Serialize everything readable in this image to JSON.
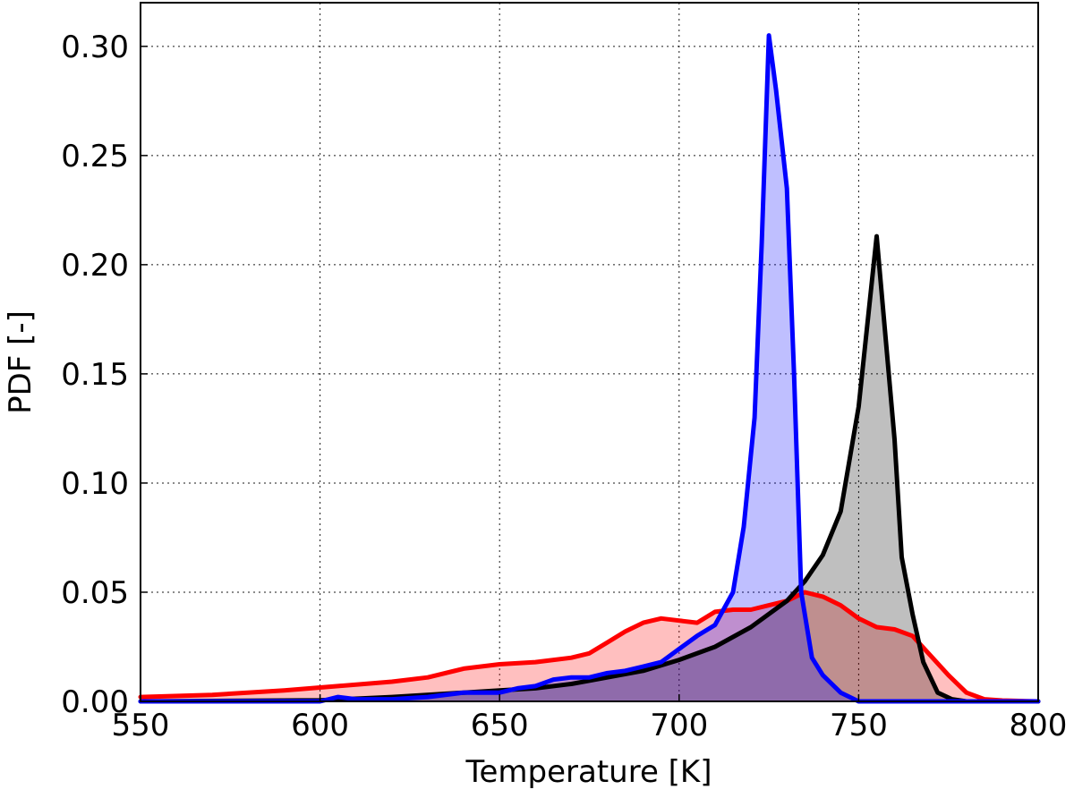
{
  "chart_data": {
    "type": "area",
    "xlabel": "Temperature [K]",
    "ylabel": "PDF [-]",
    "xlim": [
      550,
      800
    ],
    "ylim": [
      0,
      0.32
    ],
    "xticks": [
      550,
      600,
      650,
      700,
      750,
      800
    ],
    "yticks": [
      0,
      0.05,
      0.1,
      0.15,
      0.2,
      0.25,
      0.3
    ],
    "xtick_labels": [
      "550",
      "600",
      "650",
      "700",
      "750",
      "800"
    ],
    "ytick_labels": [
      "0.00",
      "0.05",
      "0.10",
      "0.15",
      "0.20",
      "0.25",
      "0.30"
    ],
    "grid": true,
    "series": [
      {
        "color": "#ff0000",
        "fill": "#ff0000",
        "fill_opacity": 0.25,
        "points": [
          [
            550,
            0.002
          ],
          [
            570,
            0.003
          ],
          [
            590,
            0.005
          ],
          [
            605,
            0.007
          ],
          [
            620,
            0.009
          ],
          [
            630,
            0.011
          ],
          [
            640,
            0.015
          ],
          [
            650,
            0.017
          ],
          [
            660,
            0.018
          ],
          [
            670,
            0.02
          ],
          [
            675,
            0.022
          ],
          [
            680,
            0.027
          ],
          [
            685,
            0.032
          ],
          [
            690,
            0.036
          ],
          [
            695,
            0.038
          ],
          [
            700,
            0.037
          ],
          [
            705,
            0.036
          ],
          [
            710,
            0.041
          ],
          [
            715,
            0.042
          ],
          [
            720,
            0.042
          ],
          [
            725,
            0.044
          ],
          [
            730,
            0.046
          ],
          [
            735,
            0.05
          ],
          [
            740,
            0.048
          ],
          [
            745,
            0.044
          ],
          [
            750,
            0.038
          ],
          [
            755,
            0.034
          ],
          [
            760,
            0.033
          ],
          [
            765,
            0.03
          ],
          [
            770,
            0.021
          ],
          [
            775,
            0.012
          ],
          [
            780,
            0.004
          ],
          [
            785,
            0.001
          ],
          [
            790,
            0.0004
          ],
          [
            800,
            0.0
          ]
        ]
      },
      {
        "color": "#000000",
        "fill": "#000000",
        "fill_opacity": 0.25,
        "points": [
          [
            550,
            0.0
          ],
          [
            600,
            0.0005
          ],
          [
            620,
            0.002
          ],
          [
            640,
            0.004
          ],
          [
            650,
            0.005
          ],
          [
            660,
            0.006
          ],
          [
            670,
            0.008
          ],
          [
            680,
            0.011
          ],
          [
            690,
            0.014
          ],
          [
            700,
            0.019
          ],
          [
            710,
            0.025
          ],
          [
            720,
            0.034
          ],
          [
            730,
            0.046
          ],
          [
            735,
            0.055
          ],
          [
            740,
            0.067
          ],
          [
            745,
            0.087
          ],
          [
            750,
            0.135
          ],
          [
            755,
            0.213
          ],
          [
            760,
            0.12
          ],
          [
            762,
            0.066
          ],
          [
            765,
            0.04
          ],
          [
            768,
            0.018
          ],
          [
            772,
            0.004
          ],
          [
            776,
            0.001
          ],
          [
            780,
            0.0
          ],
          [
            800,
            0.0
          ]
        ]
      },
      {
        "color": "#0000ff",
        "fill": "#0000ff",
        "fill_opacity": 0.25,
        "points": [
          [
            550,
            0.0
          ],
          [
            600,
            0.0
          ],
          [
            605,
            0.002
          ],
          [
            610,
            0.001
          ],
          [
            620,
            0.001
          ],
          [
            630,
            0.002
          ],
          [
            640,
            0.004
          ],
          [
            650,
            0.004
          ],
          [
            655,
            0.006
          ],
          [
            660,
            0.007
          ],
          [
            665,
            0.01
          ],
          [
            670,
            0.011
          ],
          [
            675,
            0.011
          ],
          [
            680,
            0.013
          ],
          [
            685,
            0.014
          ],
          [
            690,
            0.016
          ],
          [
            695,
            0.018
          ],
          [
            700,
            0.024
          ],
          [
            705,
            0.03
          ],
          [
            710,
            0.035
          ],
          [
            715,
            0.05
          ],
          [
            718,
            0.08
          ],
          [
            721,
            0.13
          ],
          [
            723,
            0.21
          ],
          [
            725,
            0.305
          ],
          [
            727,
            0.28
          ],
          [
            730,
            0.235
          ],
          [
            732,
            0.15
          ],
          [
            734,
            0.05
          ],
          [
            737,
            0.02
          ],
          [
            740,
            0.012
          ],
          [
            745,
            0.004
          ],
          [
            750,
            0.0
          ],
          [
            800,
            0.0
          ]
        ]
      }
    ]
  }
}
